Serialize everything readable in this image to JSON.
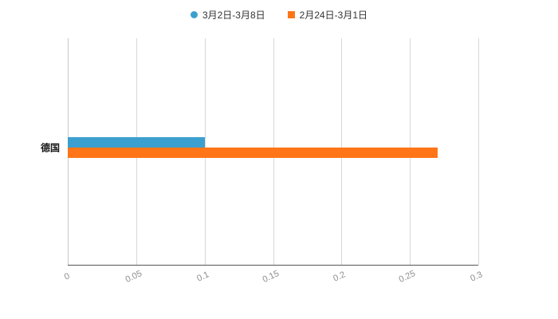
{
  "legend": [
    {
      "label": "3月2日-3月8日",
      "color": "#3ba0d0",
      "shape": "circle"
    },
    {
      "label": "2月24日-3月1日",
      "color": "#ff7517",
      "shape": "square"
    }
  ],
  "colors": {
    "grid": "#d8d8d8",
    "axis": "#555555",
    "tick_text": "#8f8f8f",
    "category_text": "#1a1a1a"
  },
  "chart_data": {
    "type": "bar",
    "orientation": "horizontal",
    "title": "",
    "xlabel": "",
    "ylabel": "",
    "categories": [
      "德国"
    ],
    "series": [
      {
        "name": "3月2日-3月8日",
        "color": "#3ba0d0",
        "values": [
          0.1
        ]
      },
      {
        "name": "2月24日-3月1日",
        "color": "#ff7517",
        "values": [
          0.27
        ]
      }
    ],
    "xlim": [
      0,
      0.3
    ],
    "xticks": [
      0,
      0.05,
      0.1,
      0.15,
      0.2,
      0.25,
      0.3
    ],
    "grid": "vertical-on",
    "legend_position": "top-center",
    "tick_label_rotation_deg": -25
  }
}
